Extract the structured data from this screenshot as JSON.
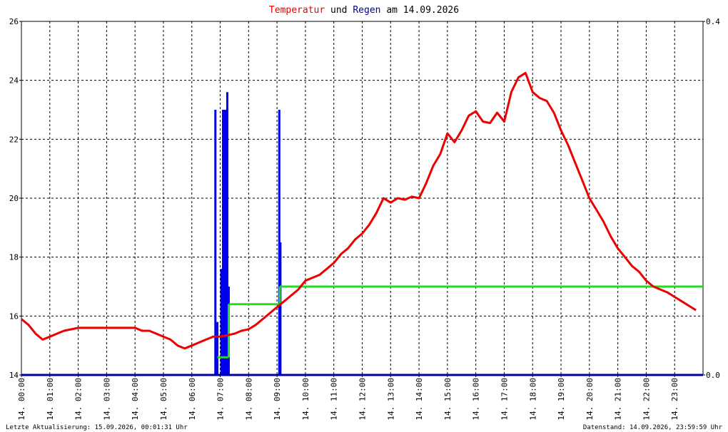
{
  "title": {
    "part_temp": "Temperatur",
    "part_und": "und",
    "part_rain": "Regen",
    "part_date": "am 14.09.2026"
  },
  "colors": {
    "temperature": "#ee0000",
    "rain_bar": "#0000ee",
    "rain_sum": "#22dd22",
    "zero_line": "#000099",
    "title_temp": "#ee0000",
    "title_rain": "#000099"
  },
  "footer": {
    "left": "Letzte Aktualisierung: 15.09.2026, 00:01:31 Uhr",
    "right": "Datenstand: 14.09.2026, 23:59:59 Uhr"
  },
  "chart_data": {
    "type": "line",
    "y_left": {
      "min": 14,
      "max": 26,
      "ticks": [
        "14",
        "16",
        "18",
        "20",
        "22",
        "24",
        "26"
      ]
    },
    "y_right": {
      "min": 0.0,
      "max": 0.4,
      "ticks": [
        "0.0",
        "0.4"
      ]
    },
    "x_range_hours": [
      0,
      24
    ],
    "x_ticks": [
      "14. 00:00",
      "14. 01:00",
      "14. 02:00",
      "14. 03:00",
      "14. 04:00",
      "14. 05:00",
      "14. 06:00",
      "14. 07:00",
      "14. 08:00",
      "14. 09:00",
      "14. 10:00",
      "14. 11:00",
      "14. 12:00",
      "14. 13:00",
      "14. 14:00",
      "14. 15:00",
      "14. 16:00",
      "14. 17:00",
      "14. 18:00",
      "14. 19:00",
      "14. 20:00",
      "14. 21:00",
      "14. 22:00",
      "14. 23:00"
    ],
    "grid": true,
    "series": [
      {
        "name": "Temperatur",
        "axis": "left",
        "points": [
          [
            0.0,
            15.9
          ],
          [
            0.25,
            15.7
          ],
          [
            0.5,
            15.4
          ],
          [
            0.75,
            15.2
          ],
          [
            1.0,
            15.3
          ],
          [
            1.25,
            15.4
          ],
          [
            1.5,
            15.5
          ],
          [
            2.0,
            15.6
          ],
          [
            2.5,
            15.6
          ],
          [
            3.0,
            15.6
          ],
          [
            3.5,
            15.6
          ],
          [
            4.0,
            15.6
          ],
          [
            4.25,
            15.5
          ],
          [
            4.5,
            15.5
          ],
          [
            5.0,
            15.3
          ],
          [
            5.25,
            15.2
          ],
          [
            5.5,
            15.0
          ],
          [
            5.75,
            14.9
          ],
          [
            6.0,
            15.0
          ],
          [
            6.25,
            15.1
          ],
          [
            6.5,
            15.2
          ],
          [
            6.75,
            15.3
          ],
          [
            7.0,
            15.3
          ],
          [
            7.25,
            15.35
          ],
          [
            7.5,
            15.4
          ],
          [
            7.75,
            15.5
          ],
          [
            8.0,
            15.55
          ],
          [
            8.25,
            15.7
          ],
          [
            8.5,
            15.9
          ],
          [
            8.75,
            16.1
          ],
          [
            9.0,
            16.3
          ],
          [
            9.25,
            16.5
          ],
          [
            9.5,
            16.7
          ],
          [
            9.75,
            16.9
          ],
          [
            10.0,
            17.2
          ],
          [
            10.25,
            17.3
          ],
          [
            10.5,
            17.4
          ],
          [
            10.75,
            17.6
          ],
          [
            11.0,
            17.8
          ],
          [
            11.25,
            18.1
          ],
          [
            11.5,
            18.3
          ],
          [
            11.75,
            18.6
          ],
          [
            12.0,
            18.8
          ],
          [
            12.25,
            19.1
          ],
          [
            12.5,
            19.5
          ],
          [
            12.75,
            20.0
          ],
          [
            13.0,
            19.85
          ],
          [
            13.25,
            20.0
          ],
          [
            13.5,
            19.95
          ],
          [
            13.75,
            20.05
          ],
          [
            14.0,
            20.0
          ],
          [
            14.25,
            20.5
          ],
          [
            14.5,
            21.1
          ],
          [
            14.75,
            21.5
          ],
          [
            15.0,
            22.2
          ],
          [
            15.25,
            21.9
          ],
          [
            15.5,
            22.3
          ],
          [
            15.75,
            22.8
          ],
          [
            16.0,
            22.95
          ],
          [
            16.25,
            22.6
          ],
          [
            16.5,
            22.55
          ],
          [
            16.75,
            22.9
          ],
          [
            17.0,
            22.6
          ],
          [
            17.25,
            23.6
          ],
          [
            17.5,
            24.1
          ],
          [
            17.75,
            24.25
          ],
          [
            18.0,
            23.6
          ],
          [
            18.25,
            23.4
          ],
          [
            18.5,
            23.3
          ],
          [
            18.75,
            22.9
          ],
          [
            19.0,
            22.3
          ],
          [
            19.25,
            21.8
          ],
          [
            19.5,
            21.2
          ],
          [
            19.75,
            20.6
          ],
          [
            20.0,
            20.0
          ],
          [
            20.25,
            19.6
          ],
          [
            20.5,
            19.2
          ],
          [
            20.75,
            18.7
          ],
          [
            21.0,
            18.3
          ],
          [
            21.25,
            18.0
          ],
          [
            21.5,
            17.7
          ],
          [
            21.75,
            17.5
          ],
          [
            22.0,
            17.2
          ],
          [
            22.25,
            17.0
          ],
          [
            22.5,
            16.9
          ],
          [
            22.75,
            16.8
          ],
          [
            23.0,
            16.65
          ],
          [
            23.25,
            16.5
          ],
          [
            23.5,
            16.35
          ],
          [
            23.75,
            16.2
          ]
        ]
      },
      {
        "name": "Regen",
        "axis": "right",
        "bars": [
          [
            6.83,
            0.3
          ],
          [
            6.9,
            0.06
          ],
          [
            7.04,
            0.12
          ],
          [
            7.1,
            0.3
          ],
          [
            7.16,
            0.3
          ],
          [
            7.2,
            0.3
          ],
          [
            7.25,
            0.32
          ],
          [
            7.3,
            0.1
          ],
          [
            9.08,
            0.3
          ],
          [
            9.12,
            0.15
          ]
        ],
        "cumulative": [
          [
            6.9,
            0.02
          ],
          [
            7.05,
            0.02
          ],
          [
            7.3,
            0.08
          ],
          [
            9.1,
            0.1
          ],
          [
            9.15,
            0.1
          ],
          [
            24.0,
            0.1
          ]
        ]
      }
    ]
  }
}
